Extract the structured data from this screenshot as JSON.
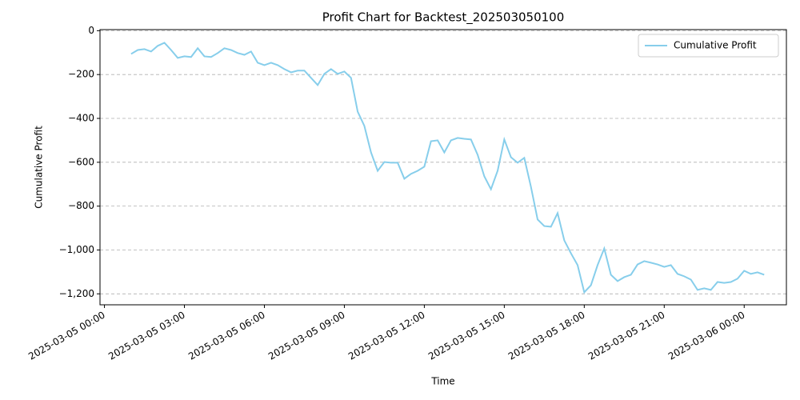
{
  "chart_data": {
    "type": "line",
    "title": "Profit Chart for Backtest_202503050100",
    "x_label": "Time",
    "y_label": "Cumulative Profit",
    "x": [
      "2025-03-05 01:00",
      "2025-03-05 01:15",
      "2025-03-05 01:30",
      "2025-03-05 01:45",
      "2025-03-05 02:00",
      "2025-03-05 02:15",
      "2025-03-05 02:30",
      "2025-03-05 02:45",
      "2025-03-05 03:00",
      "2025-03-05 03:15",
      "2025-03-05 03:30",
      "2025-03-05 03:45",
      "2025-03-05 04:00",
      "2025-03-05 04:15",
      "2025-03-05 04:30",
      "2025-03-05 04:45",
      "2025-03-05 05:00",
      "2025-03-05 05:15",
      "2025-03-05 05:30",
      "2025-03-05 05:45",
      "2025-03-05 06:00",
      "2025-03-05 06:15",
      "2025-03-05 06:30",
      "2025-03-05 06:45",
      "2025-03-05 07:00",
      "2025-03-05 07:15",
      "2025-03-05 07:30",
      "2025-03-05 07:45",
      "2025-03-05 08:00",
      "2025-03-05 08:15",
      "2025-03-05 08:30",
      "2025-03-05 08:45",
      "2025-03-05 09:00",
      "2025-03-05 09:15",
      "2025-03-05 09:30",
      "2025-03-05 09:45",
      "2025-03-05 10:00",
      "2025-03-05 10:15",
      "2025-03-05 10:30",
      "2025-03-05 10:45",
      "2025-03-05 11:00",
      "2025-03-05 11:15",
      "2025-03-05 11:30",
      "2025-03-05 11:45",
      "2025-03-05 12:00",
      "2025-03-05 12:15",
      "2025-03-05 12:30",
      "2025-03-05 12:45",
      "2025-03-05 13:00",
      "2025-03-05 13:15",
      "2025-03-05 13:30",
      "2025-03-05 13:45",
      "2025-03-05 14:00",
      "2025-03-05 14:15",
      "2025-03-05 14:30",
      "2025-03-05 14:45",
      "2025-03-05 15:00",
      "2025-03-05 15:15",
      "2025-03-05 15:30",
      "2025-03-05 15:45",
      "2025-03-05 16:00",
      "2025-03-05 16:15",
      "2025-03-05 16:30",
      "2025-03-05 16:45",
      "2025-03-05 17:00",
      "2025-03-05 17:15",
      "2025-03-05 17:30",
      "2025-03-05 17:45",
      "2025-03-05 18:00",
      "2025-03-05 18:15",
      "2025-03-05 18:30",
      "2025-03-05 18:45",
      "2025-03-05 19:00",
      "2025-03-05 19:15",
      "2025-03-05 19:30",
      "2025-03-05 19:45",
      "2025-03-05 20:00",
      "2025-03-05 20:15",
      "2025-03-05 20:30",
      "2025-03-05 20:45",
      "2025-03-05 21:00",
      "2025-03-05 21:15",
      "2025-03-05 21:30",
      "2025-03-05 21:45",
      "2025-03-05 22:00",
      "2025-03-05 22:15",
      "2025-03-05 22:30",
      "2025-03-05 22:45",
      "2025-03-05 23:00",
      "2025-03-05 23:15",
      "2025-03-05 23:30",
      "2025-03-05 23:45",
      "2025-03-06 00:00",
      "2025-03-06 00:15",
      "2025-03-06 00:30",
      "2025-03-06 00:45"
    ],
    "series": [
      {
        "name": "Cumulative Profit",
        "color": "#87ceeb",
        "values": [
          -106,
          -88,
          -84,
          -95,
          -69,
          -55,
          -88,
          -124,
          -117,
          -120,
          -80,
          -117,
          -120,
          -102,
          -80,
          -88,
          -102,
          -110,
          -95,
          -146,
          -157,
          -146,
          -157,
          -175,
          -190,
          -182,
          -182,
          -215,
          -248,
          -197,
          -175,
          -197,
          -186,
          -215,
          -369,
          -434,
          -555,
          -639,
          -599,
          -602,
          -602,
          -675,
          -653,
          -639,
          -620,
          -504,
          -500,
          -555,
          -500,
          -489,
          -493,
          -496,
          -566,
          -664,
          -723,
          -639,
          -496,
          -577,
          -602,
          -580,
          -712,
          -861,
          -891,
          -894,
          -832,
          -956,
          -1015,
          -1069,
          -1193,
          -1161,
          -1069,
          -993,
          -1113,
          -1142,
          -1124,
          -1113,
          -1066,
          -1051,
          -1058,
          -1066,
          -1077,
          -1069,
          -1109,
          -1120,
          -1135,
          -1182,
          -1175,
          -1182,
          -1146,
          -1150,
          -1146,
          -1131,
          -1095,
          -1109,
          -1102,
          -1113
        ]
      }
    ],
    "xlim": [
      "2025-03-04 23:50",
      "2025-03-06 01:35"
    ],
    "xticks": [
      "2025-03-05 00:00",
      "2025-03-05 03:00",
      "2025-03-05 06:00",
      "2025-03-05 09:00",
      "2025-03-05 12:00",
      "2025-03-05 15:00",
      "2025-03-05 18:00",
      "2025-03-05 21:00",
      "2025-03-06 00:00"
    ],
    "ylim": [
      -1250,
      5
    ],
    "yticks": [
      0,
      {
        "value": -200,
        "label": "−200"
      },
      {
        "value": -400,
        "label": "−400"
      },
      {
        "value": -600,
        "label": "−600"
      },
      {
        "value": -800,
        "label": "−800"
      },
      {
        "value": -1000,
        "label": "−1,000"
      },
      {
        "value": -1200,
        "label": "−1,200"
      }
    ],
    "grid": "y",
    "legend": "upper right"
  }
}
